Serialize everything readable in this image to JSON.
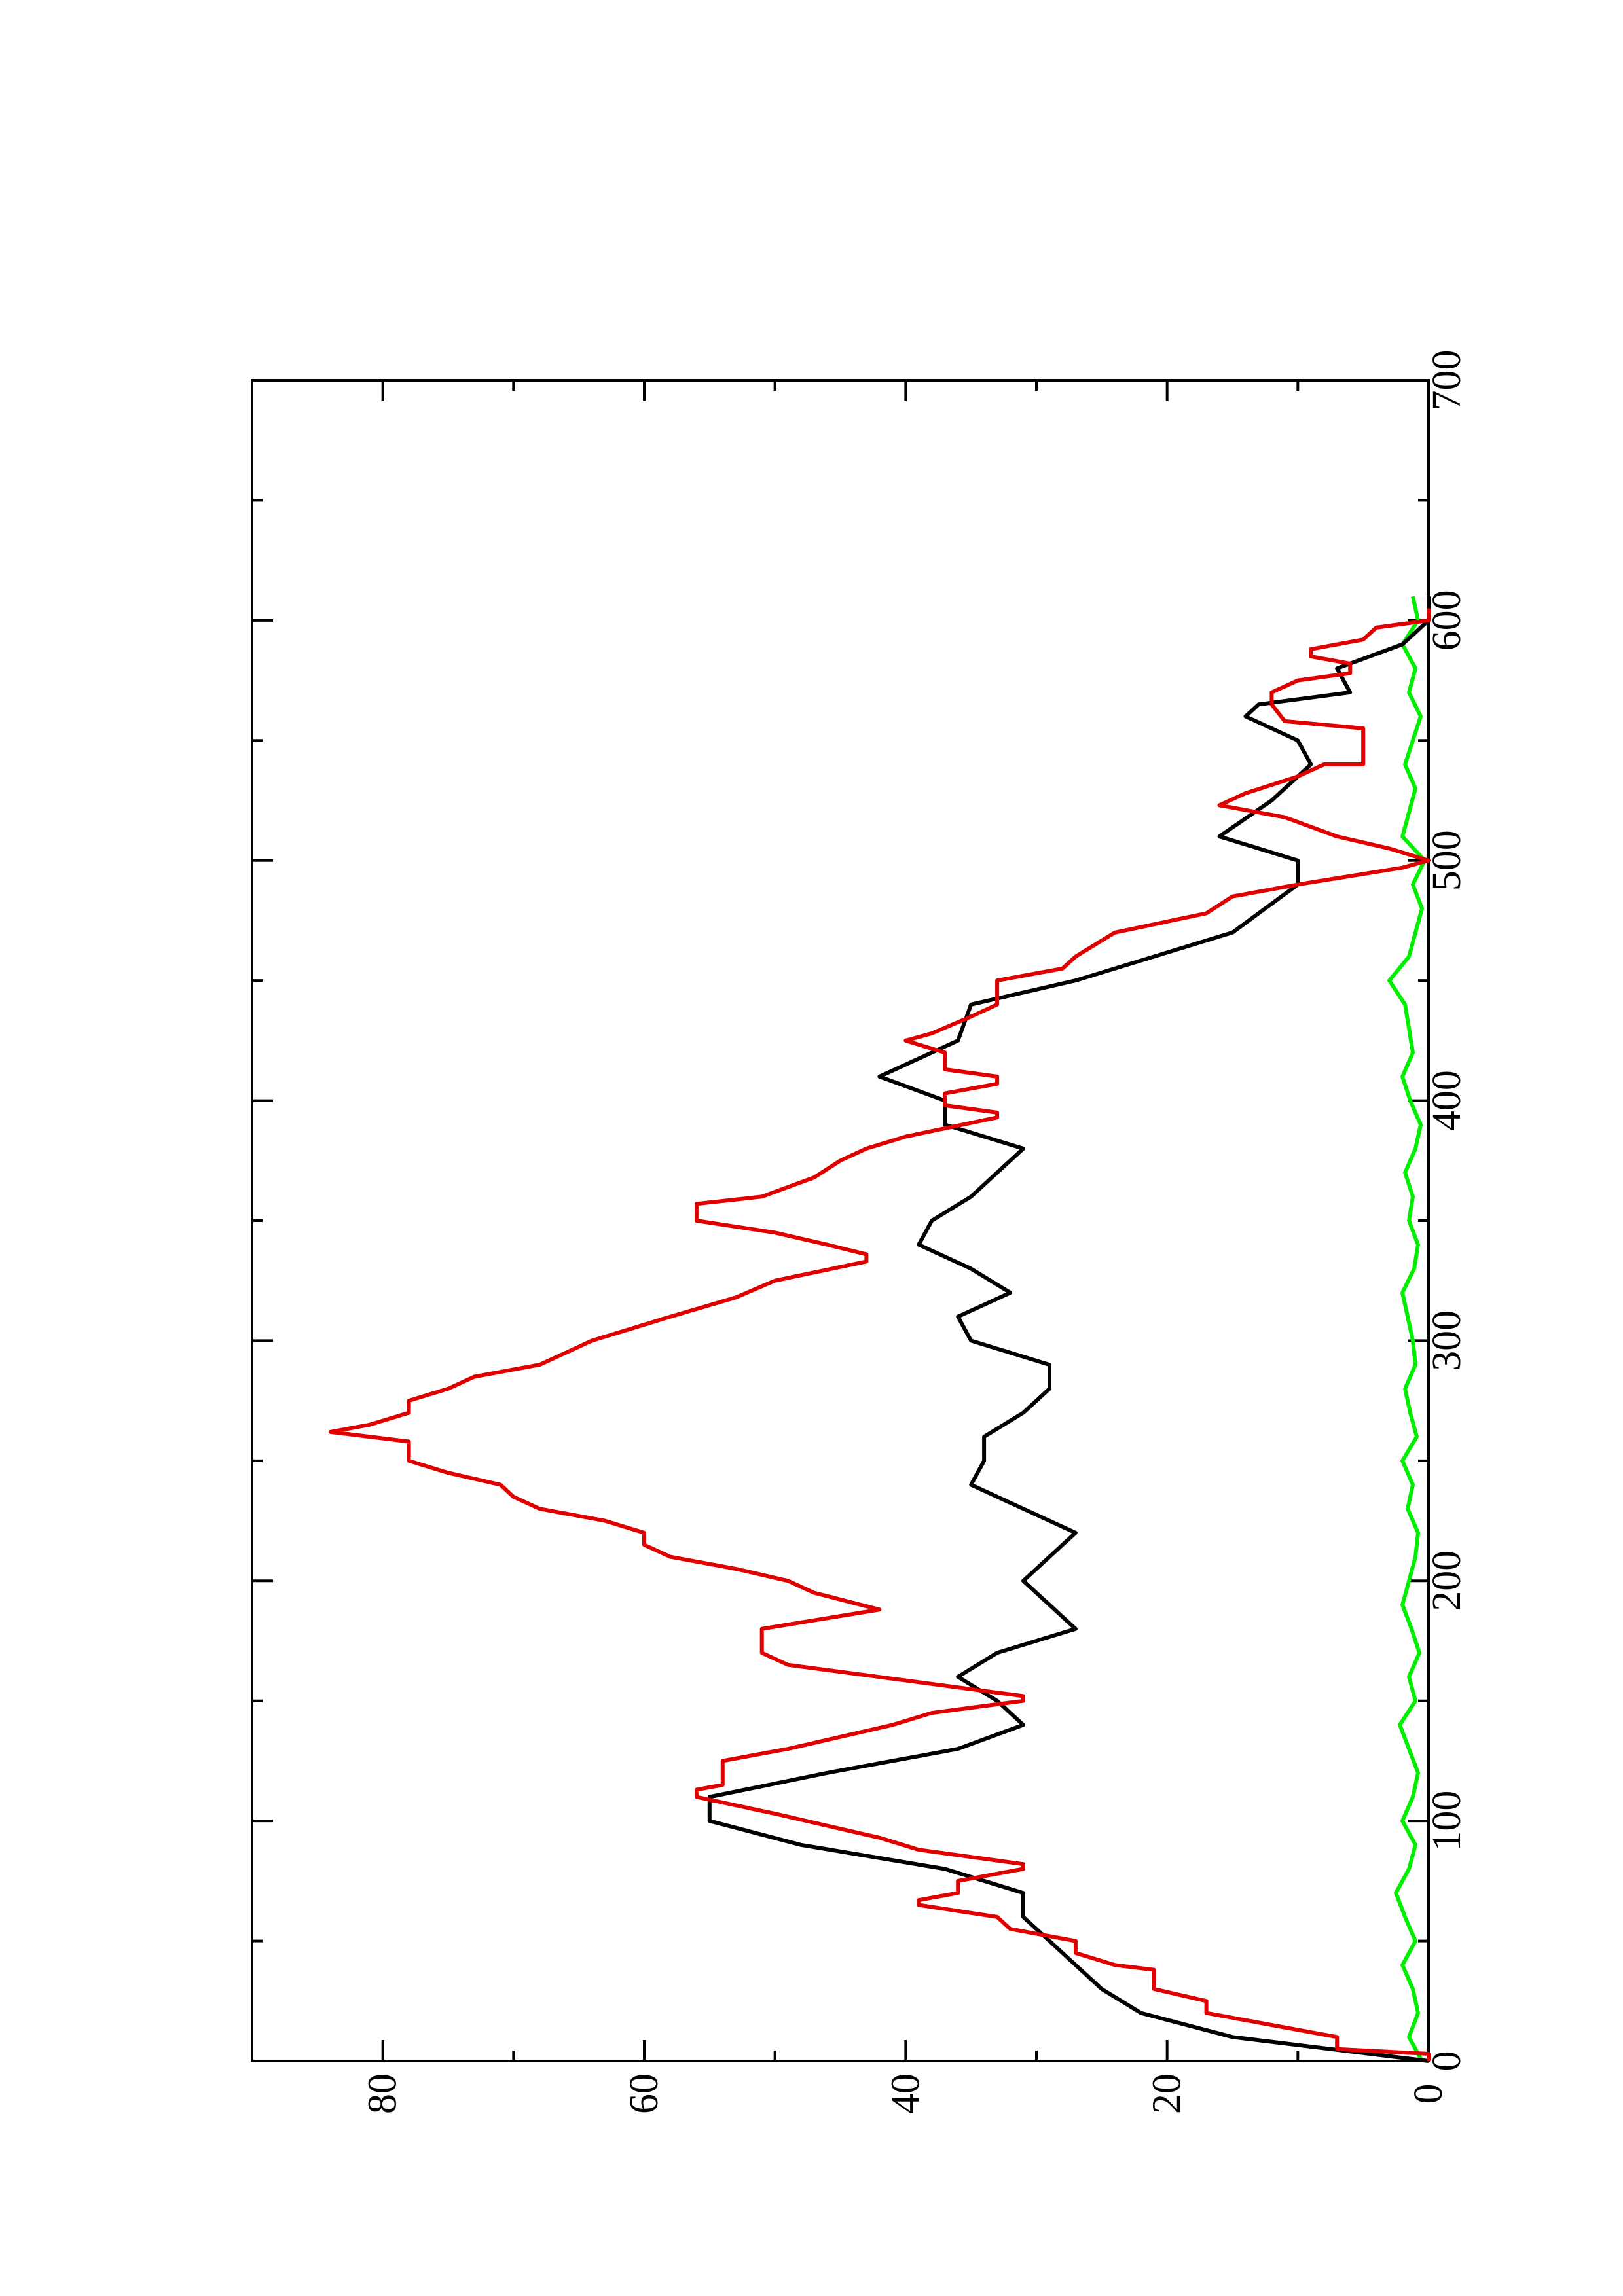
{
  "chart_data": {
    "type": "line",
    "xlim": [
      0,
      700
    ],
    "xticks": [
      0,
      100,
      200,
      300,
      400,
      500,
      600,
      700
    ],
    "xticks_minor": [
      50,
      150,
      250,
      350,
      450,
      550,
      650
    ],
    "ylim": [
      0,
      90
    ],
    "yticks": [
      0,
      20,
      40,
      60,
      80
    ],
    "yticks_minor": [
      10,
      30,
      50,
      70
    ],
    "series": [
      {
        "color": "#00ee00",
        "x": [
          0,
          10,
          20,
          30,
          40,
          50,
          60,
          70,
          80,
          90,
          100,
          110,
          120,
          130,
          140,
          150,
          160,
          170,
          180,
          190,
          200,
          210,
          220,
          230,
          240,
          250,
          260,
          270,
          280,
          290,
          300,
          310,
          320,
          330,
          340,
          350,
          360,
          370,
          380,
          390,
          400,
          410,
          420,
          430,
          440,
          450,
          460,
          470,
          480,
          490,
          500,
          510,
          520,
          530,
          540,
          550,
          560,
          570,
          580,
          590,
          600,
          610
        ],
        "values": [
          0.5,
          1.5,
          0.8,
          1.2,
          2,
          1,
          1.8,
          2.5,
          1.5,
          1,
          2,
          1.2,
          0.8,
          1.5,
          2.2,
          1,
          1.5,
          0.7,
          1.3,
          2,
          1.5,
          1,
          0.8,
          1.6,
          1.2,
          2,
          0.9,
          1.4,
          1.8,
          1,
          1.2,
          1.6,
          2,
          1.1,
          0.8,
          1.5,
          1.2,
          1.8,
          1,
          0.6,
          1.4,
          2,
          1.2,
          1.5,
          1.8,
          3,
          1.5,
          1,
          0.5,
          1.2,
          0.3,
          2,
          1.5,
          1,
          1.8,
          1.2,
          0.6,
          1.5,
          1,
          2,
          0.8,
          1.2
        ]
      },
      {
        "color": "#000000",
        "x": [
          0,
          10,
          20,
          30,
          40,
          50,
          60,
          70,
          80,
          90,
          100,
          110,
          120,
          130,
          140,
          150,
          160,
          170,
          180,
          190,
          200,
          210,
          220,
          230,
          240,
          250,
          260,
          270,
          280,
          290,
          300,
          310,
          320,
          330,
          340,
          350,
          360,
          370,
          380,
          390,
          400,
          410,
          425,
          440,
          450,
          470,
          490,
          500,
          510,
          525,
          540,
          550,
          560,
          565,
          570,
          580,
          590,
          600,
          610
        ],
        "values": [
          0,
          15,
          22,
          25,
          27,
          29,
          31,
          31,
          37,
          48,
          55,
          55,
          46,
          36,
          31,
          33,
          36,
          33,
          27,
          29,
          31,
          29,
          27,
          31,
          35,
          34,
          34,
          31,
          29,
          29,
          35,
          36,
          32,
          35,
          39,
          38,
          35,
          33,
          31,
          37,
          37,
          42,
          36,
          35,
          27,
          15,
          10,
          10,
          16,
          12,
          9,
          10,
          14,
          13,
          6,
          7,
          2,
          0,
          0
        ]
      },
      {
        "color": "#e00000",
        "x": [
          0,
          3,
          5,
          10,
          15,
          20,
          25,
          30,
          38,
          40,
          45,
          50,
          55,
          60,
          65,
          67,
          70,
          75,
          80,
          82,
          88,
          93,
          98,
          103,
          110,
          113,
          115,
          125,
          130,
          135,
          140,
          145,
          150,
          152,
          165,
          170,
          180,
          188,
          195,
          200,
          205,
          210,
          215,
          220,
          225,
          230,
          235,
          240,
          245,
          250,
          258,
          262,
          265,
          270,
          275,
          280,
          285,
          290,
          295,
          300,
          305,
          310,
          318,
          325,
          333,
          336,
          340,
          345,
          350,
          357,
          360,
          368,
          375,
          380,
          385,
          393,
          395,
          398,
          403,
          407,
          410,
          413,
          420,
          425,
          428,
          435,
          440,
          450,
          455,
          460,
          470,
          478,
          485,
          490,
          497,
          500,
          505,
          510,
          518,
          523,
          528,
          535,
          540,
          540,
          555,
          558,
          565,
          570,
          575,
          578,
          582,
          585,
          588,
          592,
          597,
          600,
          605
        ],
        "values": [
          0,
          0,
          7,
          7,
          12,
          17,
          17,
          21,
          21,
          24,
          27,
          27,
          32,
          33,
          39,
          39,
          36,
          36,
          31,
          31,
          39,
          42,
          46,
          50,
          56,
          56,
          54,
          54,
          49,
          45,
          41,
          38,
          31,
          31,
          49,
          51,
          51,
          42,
          47,
          49,
          53,
          58,
          60,
          60,
          63,
          68,
          70,
          71,
          75,
          78,
          78,
          84,
          81,
          78,
          78,
          75,
          73,
          68,
          66,
          64,
          61,
          58,
          53,
          50,
          43,
          43,
          46,
          50,
          56,
          56,
          51,
          47,
          45,
          43,
          40,
          33,
          33,
          37,
          37,
          33,
          33,
          37,
          37,
          40,
          38,
          35,
          33,
          33,
          28,
          27,
          24,
          17,
          15,
          10,
          2,
          0,
          3,
          7,
          11,
          16,
          14,
          10,
          8,
          5,
          5,
          11,
          12,
          12,
          10,
          6,
          6,
          9,
          9,
          5,
          4,
          0,
          0
        ]
      }
    ]
  }
}
